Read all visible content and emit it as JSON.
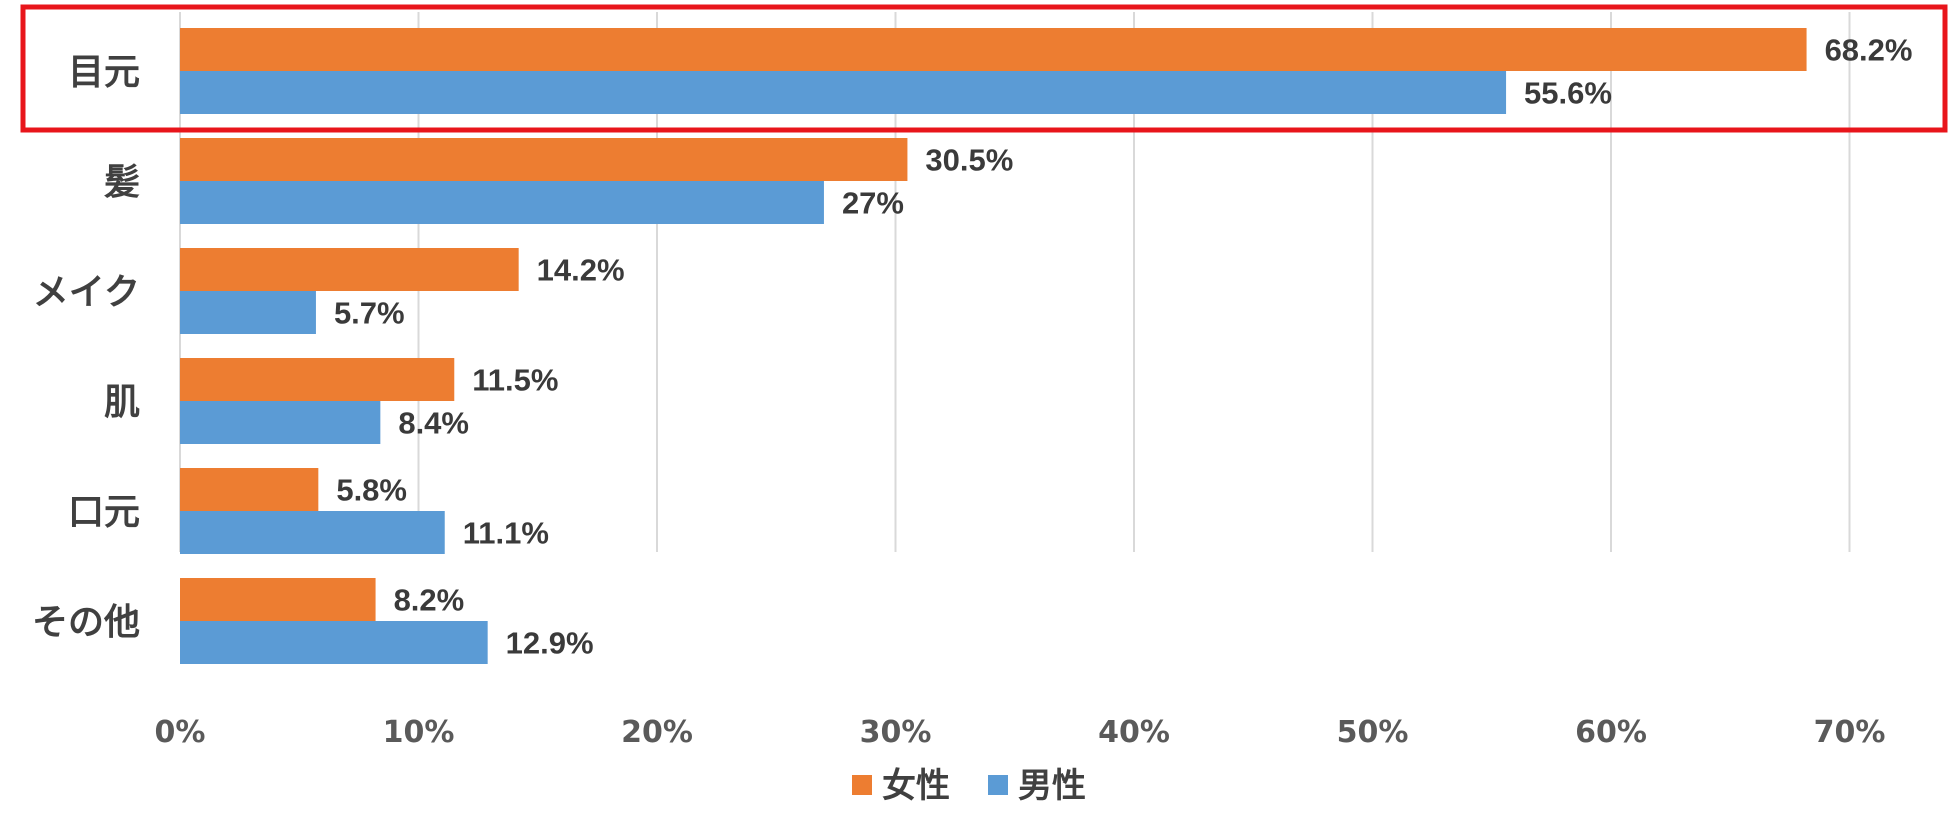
{
  "chart_data": {
    "type": "bar",
    "orientation": "horizontal",
    "categories": [
      "目元",
      "髪",
      "メイク",
      "肌",
      "口元",
      "その他"
    ],
    "series": [
      {
        "name": "女性",
        "color": "#ED7D31",
        "values": [
          68.2,
          30.5,
          14.2,
          11.5,
          5.8,
          8.2
        ],
        "labels": [
          "68.2%",
          "30.5%",
          "14.2%",
          "11.5%",
          "5.8%",
          "8.2%"
        ]
      },
      {
        "name": "男性",
        "color": "#5B9BD5",
        "values": [
          55.6,
          27,
          5.7,
          8.4,
          11.1,
          12.9
        ],
        "labels": [
          "55.6%",
          "27%",
          "5.7%",
          "8.4%",
          "11.1%",
          "12.9%"
        ]
      }
    ],
    "xlim": [
      0,
      70
    ],
    "xticks": [
      0,
      10,
      20,
      30,
      40,
      50,
      60,
      70
    ],
    "xtick_labels": [
      "0%",
      "10%",
      "20%",
      "30%",
      "40%",
      "50%",
      "60%",
      "70%"
    ],
    "grid": true,
    "legend_position": "bottom-center",
    "highlight": {
      "category": "目元",
      "color": "#E8151B"
    }
  }
}
